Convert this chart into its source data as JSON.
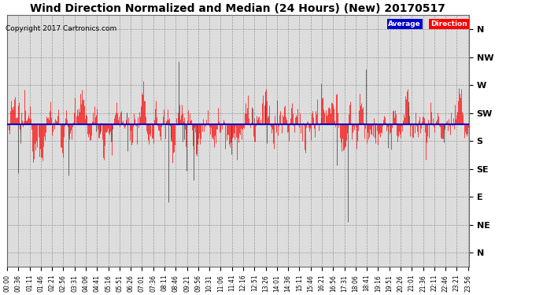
{
  "title": "Wind Direction Normalized and Median (24 Hours) (New) 20170517",
  "copyright": "Copyright 2017 Cartronics.com",
  "ytick_labels": [
    "N",
    "NW",
    "W",
    "SW",
    "S",
    "SE",
    "E",
    "NE",
    "N"
  ],
  "ytick_values": [
    8,
    7,
    6,
    5,
    4,
    3,
    2,
    1,
    0
  ],
  "y_center": 4.6,
  "bg_color": "#ffffff",
  "plot_bg_color": "#dddddd",
  "grid_color": "#888888",
  "bar_color": "#ff0000",
  "dark_bar_color": "#444444",
  "median_color": "#0000cc",
  "legend_avg_bg": "#0000cc",
  "legend_dir_bg": "#ff0000",
  "legend_text_color": "#ffffff",
  "title_fontsize": 10,
  "copyright_fontsize": 6.5,
  "num_points": 576,
  "seed": 12345,
  "median_value": 4.6,
  "xtick_minutes": [
    0,
    36,
    71,
    106,
    141,
    176,
    211,
    246,
    281,
    316,
    351,
    386,
    421,
    456,
    491,
    526,
    561,
    596,
    631,
    666,
    701,
    736,
    771,
    806,
    841,
    876,
    911,
    946,
    981,
    1016,
    1051,
    1086,
    1121,
    1156,
    1191,
    1226,
    1261,
    1296,
    1331,
    1366,
    1401,
    1436
  ],
  "xtick_labels": [
    "00:00",
    "00:36",
    "01:11",
    "01:46",
    "02:21",
    "02:56",
    "03:31",
    "04:06",
    "04:41",
    "05:16",
    "05:51",
    "06:26",
    "07:01",
    "07:36",
    "08:11",
    "08:46",
    "09:21",
    "09:56",
    "10:31",
    "11:06",
    "11:41",
    "12:16",
    "12:51",
    "13:26",
    "14:01",
    "14:36",
    "15:11",
    "15:46",
    "16:21",
    "16:56",
    "17:31",
    "18:06",
    "18:41",
    "19:16",
    "19:51",
    "20:26",
    "21:01",
    "21:36",
    "22:11",
    "22:46",
    "23:21",
    "23:56"
  ]
}
